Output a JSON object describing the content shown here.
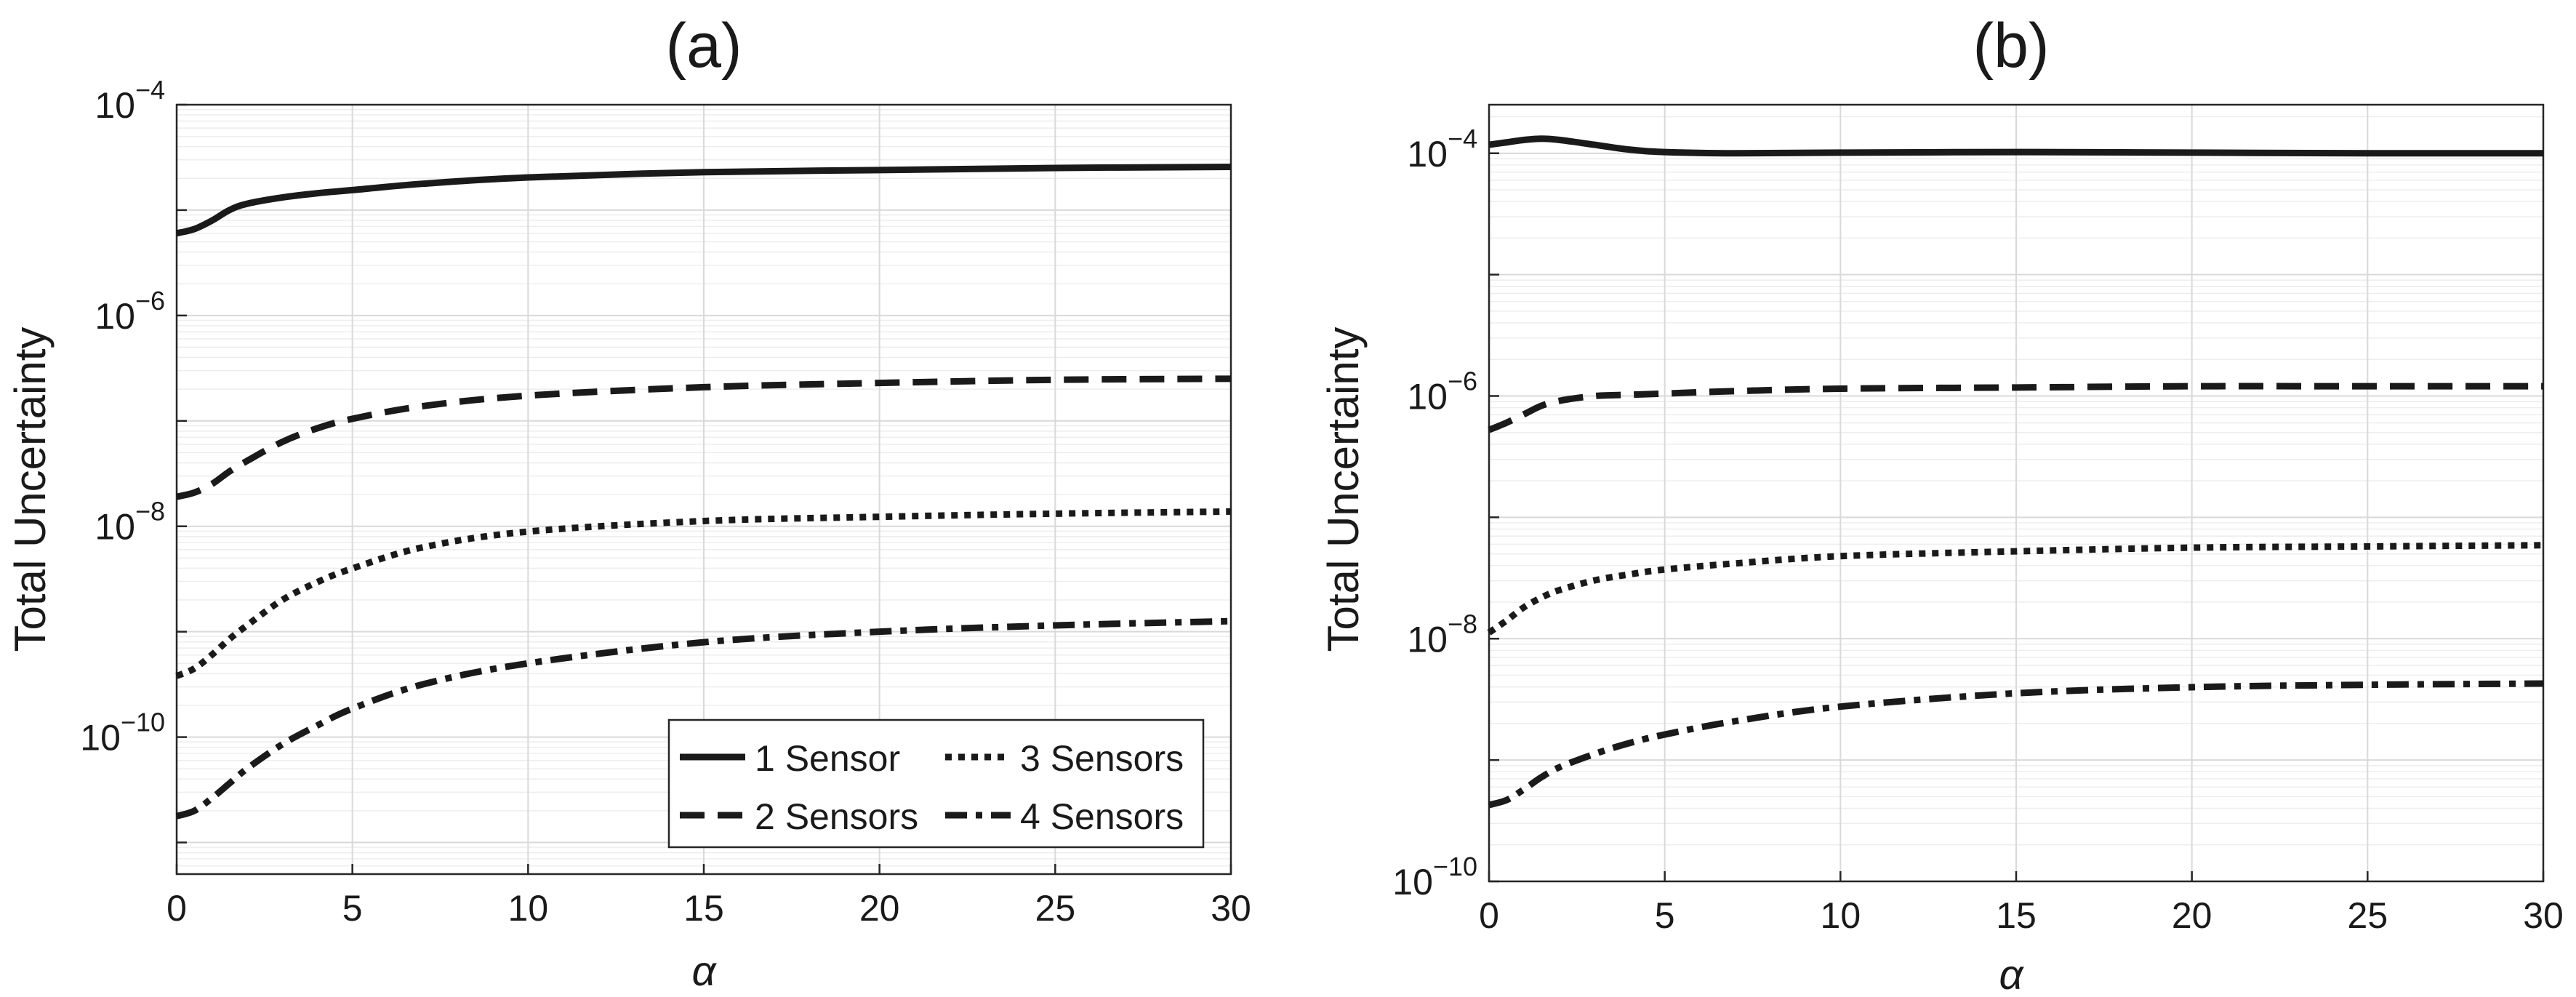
{
  "chart_data": [
    {
      "id": "a",
      "type": "line",
      "title": "(a)",
      "xlabel": "α",
      "ylabel": "Total Uncertainty",
      "xlim": [
        0,
        30
      ],
      "ylim_exp": [
        -11.3,
        -4
      ],
      "yscale": "log",
      "xticks": [
        0,
        5,
        10,
        15,
        20,
        25,
        30
      ],
      "yticks_exp": [
        -10,
        -8,
        -6,
        -4
      ],
      "grid": true,
      "legend": {
        "placement": "bottom-right",
        "columns": 2
      },
      "series": [
        {
          "name": "1 Sensor",
          "dash": "solid",
          "x": [
            0,
            0.5,
            1,
            1.5,
            2,
            3,
            4,
            5,
            7,
            10,
            15,
            20,
            25,
            30
          ],
          "log10y": [
            -5.22,
            -5.18,
            -5.1,
            -5.0,
            -4.94,
            -4.88,
            -4.84,
            -4.81,
            -4.75,
            -4.69,
            -4.64,
            -4.62,
            -4.6,
            -4.59
          ]
        },
        {
          "name": "2 Sensors",
          "dash": "dashed",
          "x": [
            0,
            0.5,
            1,
            1.5,
            2,
            3,
            4,
            5,
            7,
            10,
            15,
            20,
            25,
            30
          ],
          "log10y": [
            -7.72,
            -7.68,
            -7.6,
            -7.48,
            -7.38,
            -7.2,
            -7.07,
            -6.98,
            -6.86,
            -6.76,
            -6.68,
            -6.64,
            -6.61,
            -6.6
          ]
        },
        {
          "name": "3 Sensors",
          "dash": "dotted",
          "x": [
            0,
            0.5,
            1,
            1.5,
            2,
            3,
            4,
            5,
            7,
            10,
            15,
            20,
            25,
            30
          ],
          "log10y": [
            -9.42,
            -9.35,
            -9.22,
            -9.07,
            -8.94,
            -8.7,
            -8.53,
            -8.4,
            -8.2,
            -8.05,
            -7.95,
            -7.91,
            -7.88,
            -7.86
          ]
        },
        {
          "name": "4 Sensors",
          "dash": "dashdot",
          "x": [
            0,
            0.5,
            1,
            1.5,
            2,
            3,
            4,
            5,
            7,
            10,
            15,
            20,
            25,
            30
          ],
          "log10y": [
            -10.75,
            -10.7,
            -10.58,
            -10.44,
            -10.3,
            -10.07,
            -9.89,
            -9.73,
            -9.5,
            -9.3,
            -9.1,
            -9.0,
            -8.94,
            -8.9
          ]
        }
      ]
    },
    {
      "id": "b",
      "type": "line",
      "title": "(b)",
      "xlabel": "α",
      "ylabel": "Total Uncertainty",
      "xlim": [
        0,
        30
      ],
      "ylim_exp": [
        -10,
        -3.6
      ],
      "yscale": "log",
      "xticks": [
        0,
        5,
        10,
        15,
        20,
        25,
        30
      ],
      "yticks_exp": [
        -10,
        -8,
        -6,
        -4
      ],
      "grid": true,
      "series": [
        {
          "name": "1 Sensor",
          "dash": "solid",
          "x": [
            0,
            0.5,
            1,
            1.5,
            2,
            3,
            4,
            5,
            7,
            10,
            15,
            20,
            25,
            30
          ],
          "log10y": [
            -3.93,
            -3.91,
            -3.89,
            -3.88,
            -3.89,
            -3.93,
            -3.97,
            -3.99,
            -4.0,
            -3.995,
            -3.99,
            -3.995,
            -4.0,
            -4.0
          ]
        },
        {
          "name": "2 Sensors",
          "dash": "dashed",
          "x": [
            0,
            0.5,
            1,
            1.5,
            2,
            3,
            4,
            5,
            7,
            10,
            15,
            20,
            25,
            30
          ],
          "log10y": [
            -6.28,
            -6.22,
            -6.15,
            -6.08,
            -6.04,
            -6.0,
            -5.99,
            -5.98,
            -5.96,
            -5.94,
            -5.93,
            -5.92,
            -5.92,
            -5.92
          ]
        },
        {
          "name": "3 Sensors",
          "dash": "dotted",
          "x": [
            0,
            0.5,
            1,
            1.5,
            2,
            3,
            4,
            5,
            7,
            10,
            15,
            20,
            25,
            30
          ],
          "log10y": [
            -7.95,
            -7.85,
            -7.74,
            -7.66,
            -7.6,
            -7.52,
            -7.47,
            -7.43,
            -7.38,
            -7.32,
            -7.28,
            -7.25,
            -7.24,
            -7.23
          ]
        },
        {
          "name": "4 Sensors",
          "dash": "dashdot",
          "x": [
            0,
            0.5,
            1,
            1.5,
            2,
            3,
            4,
            5,
            7,
            10,
            15,
            20,
            25,
            30
          ],
          "log10y": [
            -9.37,
            -9.33,
            -9.24,
            -9.14,
            -9.06,
            -8.95,
            -8.86,
            -8.79,
            -8.68,
            -8.56,
            -8.45,
            -8.4,
            -8.38,
            -8.37
          ]
        }
      ]
    }
  ]
}
